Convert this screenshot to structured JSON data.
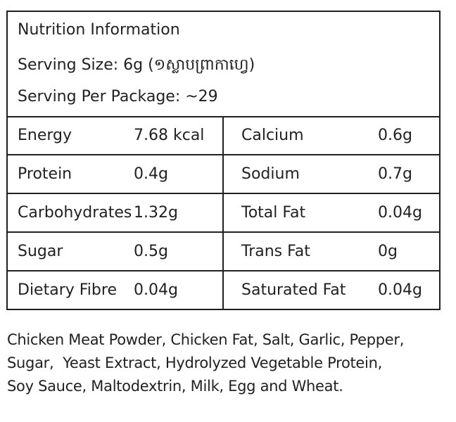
{
  "header": {
    "title": "Nutrition Information",
    "serving_size": "Serving Size: 6g (១ស្លាបព្រាកាហ្វេ)",
    "serving_per_package": "Serving Per Package: ~29"
  },
  "table": {
    "rows": [
      [
        "Energy",
        "7.68 kcal",
        "Calcium",
        "0.6g"
      ],
      [
        "Protein",
        "0.4g",
        "Sodium",
        "0.7g"
      ],
      [
        "Carbohydrates",
        "1.32g",
        "Total Fat",
        "0.04g"
      ],
      [
        "Sugar",
        "0.5g",
        "Trans Fat",
        "0g"
      ],
      [
        "Dietary Fibre",
        "0.04g",
        "Saturated Fat",
        "0.04g"
      ]
    ]
  },
  "ingredients": [
    "Chicken Meat Powder, Chicken Fat, Salt, Garlic, Pepper,",
    "Sugar,  Yeast Extract, Hydrolyzed Vegetable Protein,",
    "Soy Sauce, Maltodextrin, Milk, Egg and Wheat."
  ]
}
